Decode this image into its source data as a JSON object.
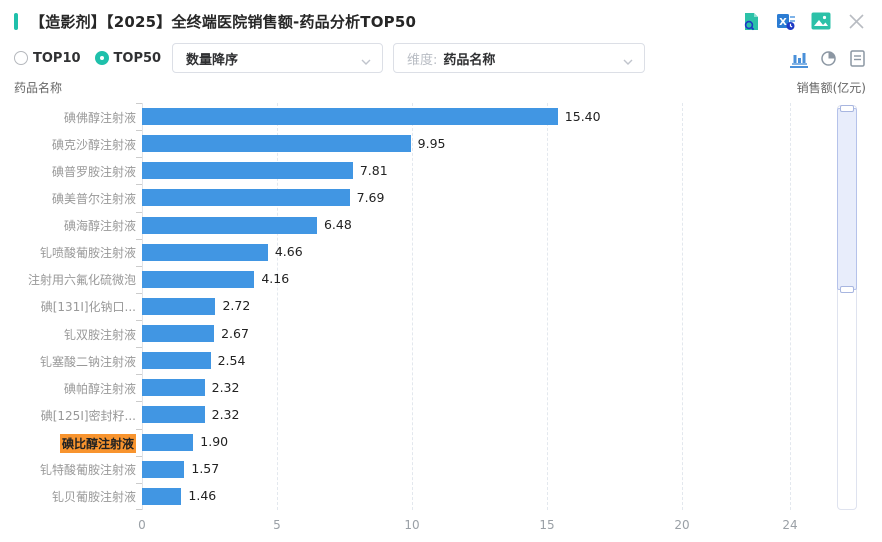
{
  "header": {
    "title": "【造影剂】【2025】全终端医院销售额-药品分析TOP50",
    "icons": [
      "document-search-icon",
      "excel-export-icon",
      "image-export-icon",
      "close-icon"
    ]
  },
  "controls": {
    "radios": [
      {
        "label": "TOP10",
        "selected": false
      },
      {
        "label": "TOP50",
        "selected": true
      }
    ],
    "sort_select": {
      "value": "数量降序"
    },
    "dimension_select": {
      "prefix": "维度:",
      "value": "药品名称"
    },
    "chart_type_icons": [
      "bar-chart-icon",
      "pie-chart-icon",
      "report-icon"
    ],
    "active_chart_type": "bar"
  },
  "axis_header": {
    "left": "药品名称",
    "right": "销售额(亿元)"
  },
  "chart_data": {
    "type": "bar",
    "orientation": "horizontal",
    "title": "全终端医院销售额-药品分析TOP50",
    "xlabel": "销售额(亿元)",
    "ylabel": "药品名称",
    "categories": [
      "碘佛醇注射液",
      "碘克沙醇注射液",
      "碘普罗胺注射液",
      "碘美普尔注射液",
      "碘海醇注射液",
      "钆喷酸葡胺注射液",
      "注射用六氟化硫微泡",
      "碘[131I]化钠口...",
      "钆双胺注射液",
      "钆塞酸二钠注射液",
      "碘帕醇注射液",
      "碘[125I]密封籽...",
      "碘比醇注射液",
      "钆特酸葡胺注射液",
      "钆贝葡胺注射液"
    ],
    "values": [
      15.4,
      9.95,
      7.81,
      7.69,
      6.48,
      4.66,
      4.16,
      2.72,
      2.67,
      2.54,
      2.32,
      2.32,
      1.9,
      1.57,
      1.46
    ],
    "highlighted_category": "碘比醇注射液",
    "highlighted_index": 12,
    "xlim": [
      0,
      24
    ],
    "x_ticks": [
      0,
      5,
      10,
      15,
      20,
      24
    ],
    "grid": "dashed-vertical",
    "bar_color": "#4196e3",
    "highlight_color": "#f8942e",
    "shown_items": 15,
    "total_items": 50
  }
}
